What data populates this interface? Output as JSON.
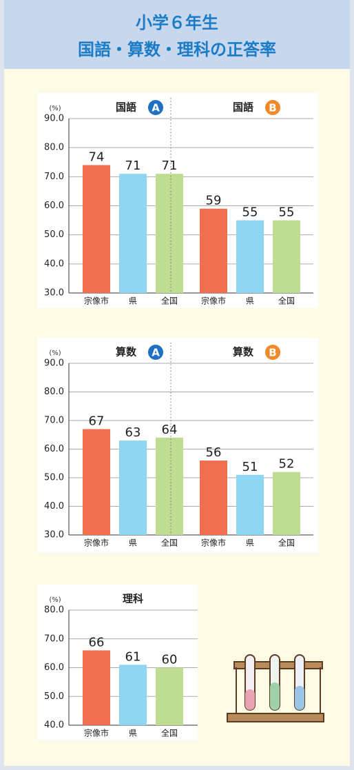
{
  "header": {
    "title_lines": [
      "小学６年生",
      "国語・算数・理科の正答率"
    ]
  },
  "chart_data": [
    {
      "type": "bar",
      "unit_label": "(%)",
      "ylim": [
        30,
        90
      ],
      "yticks": [
        {
          "value": 30,
          "label": "30.0"
        },
        {
          "value": 40,
          "label": "40.0"
        },
        {
          "value": 50,
          "label": "50.0"
        },
        {
          "value": 60,
          "label": "60.0"
        },
        {
          "value": 70,
          "label": "70.0"
        },
        {
          "value": 80,
          "label": "80.0"
        },
        {
          "value": 90,
          "label": "90.0"
        }
      ],
      "colors": [
        "#ef6f50",
        "#8fd6f3",
        "#bfdc93"
      ],
      "panels": [
        {
          "title": "国語",
          "badge": "A",
          "badge_color": "#1f6fc2",
          "categories": [
            "宗像市",
            "県",
            "全国"
          ],
          "values": [
            74,
            71,
            71
          ]
        },
        {
          "title": "国語",
          "badge": "B",
          "badge_color": "#ef8a2a",
          "categories": [
            "宗像市",
            "県",
            "全国"
          ],
          "values": [
            59,
            55,
            55
          ]
        }
      ]
    },
    {
      "type": "bar",
      "unit_label": "(%)",
      "ylim": [
        30,
        90
      ],
      "yticks": [
        {
          "value": 30,
          "label": "30.0"
        },
        {
          "value": 40,
          "label": "40.0"
        },
        {
          "value": 50,
          "label": "50.0"
        },
        {
          "value": 60,
          "label": "60.0"
        },
        {
          "value": 70,
          "label": "70.0"
        },
        {
          "value": 80,
          "label": "80.0"
        },
        {
          "value": 90,
          "label": "90.0"
        }
      ],
      "colors": [
        "#ef6f50",
        "#8fd6f3",
        "#bfdc93"
      ],
      "panels": [
        {
          "title": "算数",
          "badge": "A",
          "badge_color": "#1f6fc2",
          "categories": [
            "宗像市",
            "県",
            "全国"
          ],
          "values": [
            67,
            63,
            64
          ]
        },
        {
          "title": "算数",
          "badge": "B",
          "badge_color": "#ef8a2a",
          "categories": [
            "宗像市",
            "県",
            "全国"
          ],
          "values": [
            56,
            51,
            52
          ]
        }
      ]
    },
    {
      "type": "bar",
      "unit_label": "(%)",
      "ylim": [
        40,
        80
      ],
      "yticks": [
        {
          "value": 40,
          "label": "40.0"
        },
        {
          "value": 50,
          "label": "50.0"
        },
        {
          "value": 60,
          "label": "60.0"
        },
        {
          "value": 70,
          "label": "70.0"
        },
        {
          "value": 80,
          "label": "80.0"
        }
      ],
      "colors": [
        "#ef6f50",
        "#8fd6f3",
        "#bfdc93"
      ],
      "panels": [
        {
          "title": "理科",
          "categories": [
            "宗像市",
            "県",
            "全国"
          ],
          "values": [
            66,
            61,
            60
          ]
        }
      ]
    }
  ]
}
